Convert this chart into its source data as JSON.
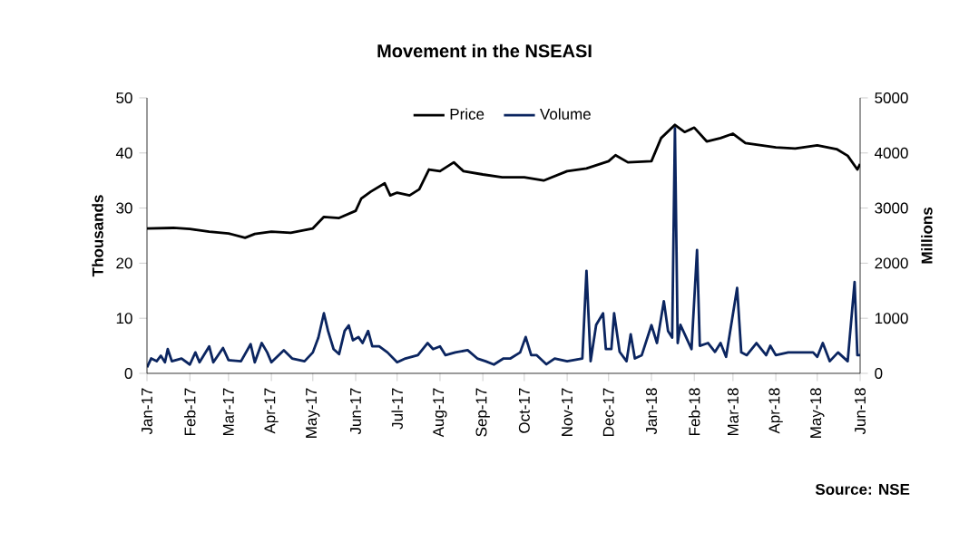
{
  "chart_data": {
    "type": "line",
    "title": "Movement in the NSEASI",
    "ylabel": "Thousands",
    "y2label": "Millions",
    "annotations": [
      "Source: NSE"
    ],
    "legend": "top",
    "grid": false,
    "marker": "none",
    "line_style": "solid",
    "xlim": [
      "2017-01-01",
      "2018-06-01"
    ],
    "xticks": [
      {
        "value": "2017-01-01",
        "label": "Jan-17"
      },
      {
        "value": "2017-02-01",
        "label": "Feb-17"
      },
      {
        "value": "2017-03-01",
        "label": "Mar-17"
      },
      {
        "value": "2017-04-01",
        "label": "Apr-17"
      },
      {
        "value": "2017-05-01",
        "label": "May-17"
      },
      {
        "value": "2017-06-01",
        "label": "Jun-17"
      },
      {
        "value": "2017-07-01",
        "label": "Jul-17"
      },
      {
        "value": "2017-08-01",
        "label": "Aug-17"
      },
      {
        "value": "2017-09-01",
        "label": "Sep-17"
      },
      {
        "value": "2017-10-01",
        "label": "Oct-17"
      },
      {
        "value": "2017-11-01",
        "label": "Nov-17"
      },
      {
        "value": "2017-12-01",
        "label": "Dec-17"
      },
      {
        "value": "2018-01-01",
        "label": "Jan-18"
      },
      {
        "value": "2018-02-01",
        "label": "Feb-18"
      },
      {
        "value": "2018-03-01",
        "label": "Mar-18"
      },
      {
        "value": "2018-04-01",
        "label": "Apr-18"
      },
      {
        "value": "2018-05-01",
        "label": "May-18"
      },
      {
        "value": "2018-06-01",
        "label": "Jun-18"
      }
    ],
    "ylim": [
      0,
      50
    ],
    "yticks": [
      0,
      10,
      20,
      30,
      40,
      50
    ],
    "y2lim": [
      0,
      5000
    ],
    "y2ticks": [
      0,
      1000,
      2000,
      3000,
      4000,
      5000
    ],
    "series": [
      {
        "name": "Price",
        "color": "#000000",
        "x": [
          "2017-01-01",
          "2017-01-20",
          "2017-02-01",
          "2017-02-15",
          "2017-03-01",
          "2017-03-13",
          "2017-03-20",
          "2017-04-01",
          "2017-04-15",
          "2017-05-01",
          "2017-05-09",
          "2017-05-20",
          "2017-06-01",
          "2017-06-05",
          "2017-06-12",
          "2017-06-22",
          "2017-06-26",
          "2017-07-01",
          "2017-07-10",
          "2017-07-17",
          "2017-07-24",
          "2017-08-01",
          "2017-08-11",
          "2017-08-18",
          "2017-09-01",
          "2017-09-15",
          "2017-10-01",
          "2017-10-15",
          "2017-11-01",
          "2017-11-15",
          "2017-12-01",
          "2017-12-06",
          "2017-12-15",
          "2018-01-01",
          "2018-01-08",
          "2018-01-18",
          "2018-01-25",
          "2018-02-01",
          "2018-02-10",
          "2018-02-20",
          "2018-03-01",
          "2018-03-10",
          "2018-04-01",
          "2018-04-15",
          "2018-05-01",
          "2018-05-15",
          "2018-05-23",
          "2018-05-30",
          "2018-06-01"
        ],
        "values": [
          26.3,
          26.4,
          26.2,
          25.7,
          25.4,
          24.6,
          25.3,
          25.7,
          25.5,
          26.3,
          28.4,
          28.2,
          29.5,
          31.7,
          33.0,
          34.5,
          32.3,
          32.8,
          32.3,
          33.4,
          37.0,
          36.7,
          38.3,
          36.7,
          36.1,
          35.6,
          35.6,
          35.0,
          36.7,
          37.2,
          38.5,
          39.6,
          38.3,
          38.5,
          42.7,
          45.1,
          43.8,
          44.6,
          42.1,
          42.7,
          43.5,
          41.8,
          41.0,
          40.8,
          41.4,
          40.7,
          39.5,
          37.0,
          38.0
        ]
      },
      {
        "name": "Volume",
        "color": "#0b2560",
        "axis": "y2",
        "x": [
          "2017-01-01",
          "2017-01-04",
          "2017-01-08",
          "2017-01-11",
          "2017-01-14",
          "2017-01-16",
          "2017-01-19",
          "2017-01-26",
          "2017-02-01",
          "2017-02-05",
          "2017-02-08",
          "2017-02-15",
          "2017-02-18",
          "2017-02-25",
          "2017-03-01",
          "2017-03-10",
          "2017-03-17",
          "2017-03-20",
          "2017-03-25",
          "2017-03-29",
          "2017-04-01",
          "2017-04-10",
          "2017-04-16",
          "2017-04-25",
          "2017-05-01",
          "2017-05-05",
          "2017-05-09",
          "2017-05-12",
          "2017-05-16",
          "2017-05-20",
          "2017-05-24",
          "2017-05-27",
          "2017-05-30",
          "2017-06-03",
          "2017-06-06",
          "2017-06-10",
          "2017-06-13",
          "2017-06-18",
          "2017-06-24",
          "2017-07-01",
          "2017-07-07",
          "2017-07-16",
          "2017-07-23",
          "2017-07-27",
          "2017-08-01",
          "2017-08-05",
          "2017-08-12",
          "2017-08-21",
          "2017-08-28",
          "2017-09-03",
          "2017-09-09",
          "2017-09-16",
          "2017-09-21",
          "2017-09-28",
          "2017-10-02",
          "2017-10-06",
          "2017-10-10",
          "2017-10-17",
          "2017-10-23",
          "2017-11-01",
          "2017-11-12",
          "2017-11-15",
          "2017-11-18",
          "2017-11-22",
          "2017-11-27",
          "2017-11-29",
          "2017-12-03",
          "2017-12-05",
          "2017-12-09",
          "2017-12-14",
          "2017-12-17",
          "2017-12-20",
          "2017-12-25",
          "2018-01-01",
          "2018-01-05",
          "2018-01-10",
          "2018-01-13",
          "2018-01-16",
          "2018-01-18",
          "2018-01-20",
          "2018-01-22",
          "2018-01-26",
          "2018-01-30",
          "2018-02-03",
          "2018-02-05",
          "2018-02-11",
          "2018-02-16",
          "2018-02-20",
          "2018-02-24",
          "2018-03-04",
          "2018-03-07",
          "2018-03-11",
          "2018-03-18",
          "2018-03-25",
          "2018-03-28",
          "2018-04-01",
          "2018-04-10",
          "2018-04-19",
          "2018-04-28",
          "2018-05-01",
          "2018-05-05",
          "2018-05-10",
          "2018-05-16",
          "2018-05-23",
          "2018-05-28",
          "2018-05-30",
          "2018-06-01"
        ],
        "values": [
          110,
          270,
          220,
          320,
          200,
          440,
          220,
          270,
          160,
          380,
          200,
          490,
          200,
          460,
          240,
          220,
          530,
          200,
          550,
          380,
          200,
          420,
          270,
          220,
          380,
          650,
          1090,
          770,
          440,
          350,
          770,
          870,
          600,
          660,
          550,
          770,
          490,
          490,
          380,
          200,
          270,
          330,
          550,
          440,
          490,
          330,
          380,
          420,
          270,
          220,
          160,
          270,
          270,
          380,
          660,
          330,
          330,
          165,
          270,
          220,
          270,
          1860,
          220,
          880,
          1090,
          440,
          440,
          1090,
          390,
          220,
          710,
          270,
          330,
          875,
          550,
          1310,
          770,
          650,
          4450,
          550,
          880,
          660,
          440,
          2240,
          500,
          550,
          390,
          550,
          300,
          1550,
          380,
          330,
          550,
          330,
          500,
          330,
          380,
          380,
          380,
          300,
          550,
          220,
          380,
          220,
          1660,
          330,
          330
        ]
      }
    ]
  }
}
